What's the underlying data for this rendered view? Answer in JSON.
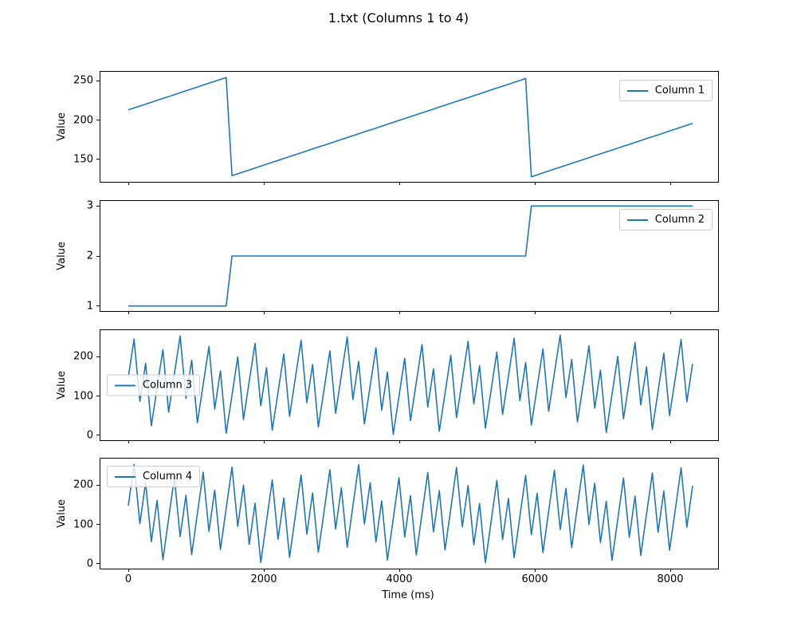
{
  "chart_data": {
    "type": "line",
    "title": "1.txt (Columns 1 to 4)",
    "xlabel": "Time (ms)",
    "x_ticks": [
      0,
      2000,
      4000,
      6000,
      8000
    ],
    "xlim": [
      -412,
      8706
    ],
    "grid": false,
    "line_color": "#1f77b4",
    "frame_color": "#000000",
    "sampling": {
      "interval_ms": 85,
      "n_samples": 99,
      "t_start": 0,
      "t_end": 8330
    },
    "subplots": [
      {
        "legend_label": "Column 1",
        "legend_position": "upper-right",
        "ylabel": "Value",
        "yticks": [
          150,
          200,
          250
        ],
        "ylim": [
          121.65,
          261.35
        ],
        "series": {
          "kind": "mod-sawtooth",
          "description": "slow sawtooth ramp between 128 and 255, period ~4470 ms",
          "base": 128,
          "offset": 85,
          "slope_per_ms": 0.02843,
          "mod": 127
        },
        "key_points": {
          "start": [
            0,
            213
          ],
          "peak_value": 255,
          "reset_value": 128,
          "wrap_times_ms": [
            1480,
            5950
          ],
          "end": [
            8330,
            194
          ]
        }
      },
      {
        "legend_label": "Column 2",
        "legend_position": "upper-right",
        "ylabel": "Value",
        "yticks": [
          1,
          2,
          3
        ],
        "ylim": [
          0.9,
          3.1
        ],
        "series": {
          "kind": "step-counter",
          "description": "staircase: value 1 then 2 then 3, stepping where Column 1 wraps",
          "base": 1,
          "offset": 85,
          "slope_per_ms": 0.02843,
          "mod": 127
        },
        "key_points": {
          "steps": [
            [
              0,
              1
            ],
            [
              1500,
              2
            ],
            [
              5970,
              3
            ]
          ],
          "end": [
            8330,
            3
          ]
        }
      },
      {
        "legend_label": "Column 3",
        "legend_position": "center-left",
        "ylabel": "Value",
        "yticks": [
          0,
          100,
          200
        ],
        "ylim": [
          -12.75,
          267.75
        ],
        "series": {
          "kind": "mod-increment",
          "description": "fast aliased sawtooth wrapping mod 256, tooth spacing ~225 ms, peaks ~210-255, troughs ~0-60",
          "start": 148,
          "step": 97,
          "mod": 256
        }
      },
      {
        "legend_label": "Column 4",
        "legend_position": "upper-left",
        "ylabel": "Value",
        "yticks": [
          0,
          100,
          200
        ],
        "ylim": [
          -12.75,
          267.75
        ],
        "series": {
          "kind": "mod-increment",
          "description": "fast aliased sawtooth wrapping mod 256, tooth spacing ~207 ms, starts at 148",
          "start": 148,
          "step": 105,
          "mod": 256
        }
      }
    ]
  }
}
